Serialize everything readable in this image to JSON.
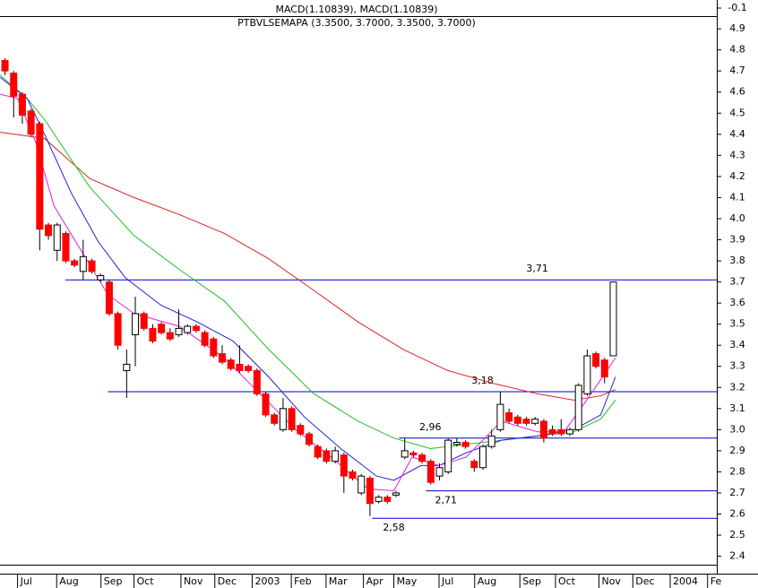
{
  "chart_data": [
    {
      "type": "candlestick",
      "title": "PTBVLSEMAPA (3.3500, 3.7000, 3.3500, 3.7000)",
      "ylim": [
        2.36,
        4.96
      ],
      "yticks": [
        2.4,
        2.5,
        2.6,
        2.7,
        2.8,
        2.9,
        {
          "value": 3,
          "label": "3.0"
        },
        3.1,
        3.2,
        3.3,
        3.4,
        3.5,
        3.6,
        3.7,
        3.8,
        3.9,
        {
          "value": 4,
          "label": "4.0"
        },
        4.1,
        4.2,
        4.3,
        4.4,
        4.5,
        4.6,
        4.7,
        4.8,
        4.9
      ],
      "xlim": [
        -0.52,
        81.96
      ],
      "xticks": [
        {
          "value": 1.5,
          "label": "Jul"
        },
        {
          "value": 6.0,
          "label": "Aug"
        },
        {
          "value": 11.1,
          "label": "Sep"
        },
        {
          "value": 14.9,
          "label": "Oct"
        },
        {
          "value": 20.3,
          "label": "Nov"
        },
        {
          "value": 24.2,
          "label": "Dec"
        },
        {
          "value": 28.5,
          "label": "2003"
        },
        {
          "value": 33.0,
          "label": "Feb"
        },
        {
          "value": 37.0,
          "label": "Mar"
        },
        {
          "value": 41.3,
          "label": "Apr"
        },
        {
          "value": 44.8,
          "label": "May"
        },
        {
          "value": 50.0,
          "label": "Jul"
        },
        {
          "value": 54.1,
          "label": "Aug"
        },
        {
          "value": 59.3,
          "label": "Sep"
        },
        {
          "value": 63.4,
          "label": "Oct"
        },
        {
          "value": 68.4,
          "label": "Nov"
        },
        {
          "value": 72.3,
          "label": "Dec"
        },
        {
          "value": 76.6,
          "label": "2004"
        },
        {
          "value": 80.9,
          "label": "Fe"
        }
      ],
      "up_color": "#ffffff",
      "down_color": "#ff0000",
      "open": [
        4.75,
        4.69,
        4.59,
        4.51,
        4.45,
        3.97,
        3.85,
        3.93,
        3.8,
        3.75,
        3.8,
        3.71,
        3.7,
        3.55,
        3.28,
        3.45,
        3.55,
        3.48,
        3.5,
        3.46,
        3.45,
        3.46,
        3.49,
        3.46,
        3.43,
        3.36,
        3.33,
        3.31,
        3.3,
        3.28,
        3.17,
        3.07,
        3.0,
        3.1,
        3.02,
        2.98,
        2.92,
        2.9,
        2.85,
        2.88,
        2.8,
        2.7,
        2.77,
        2.66,
        2.68,
        2.69,
        2.87,
        2.89,
        2.88,
        2.85,
        2.78,
        2.8,
        2.93,
        2.94,
        2.85,
        2.82,
        2.92,
        3.0,
        3.08,
        3.06,
        3.05,
        3.03,
        3.04,
        3.0,
        3.0,
        2.98,
        3.0,
        3.17,
        3.36,
        3.33,
        3.35
      ],
      "high": [
        4.76,
        4.7,
        4.6,
        4.52,
        4.46,
        3.98,
        3.98,
        3.94,
        3.81,
        3.9,
        3.81,
        3.74,
        3.71,
        3.56,
        3.38,
        3.63,
        3.56,
        3.5,
        3.51,
        3.48,
        3.57,
        3.5,
        3.5,
        3.47,
        3.44,
        3.4,
        3.34,
        3.4,
        3.31,
        3.29,
        3.18,
        3.08,
        3.15,
        3.11,
        3.03,
        2.99,
        2.93,
        2.91,
        2.92,
        2.89,
        2.81,
        2.79,
        2.78,
        2.69,
        2.69,
        2.71,
        2.96,
        2.9,
        2.89,
        2.86,
        2.84,
        2.96,
        2.96,
        2.95,
        2.86,
        2.93,
        3.0,
        3.18,
        3.1,
        3.07,
        3.06,
        3.06,
        3.05,
        3.02,
        3.05,
        3.01,
        3.22,
        3.38,
        3.37,
        3.34,
        3.7
      ],
      "low": [
        4.68,
        4.48,
        4.45,
        4.39,
        3.85,
        3.9,
        3.8,
        3.79,
        3.77,
        3.71,
        3.74,
        3.7,
        3.54,
        3.38,
        3.15,
        3.3,
        3.47,
        3.41,
        3.45,
        3.42,
        3.44,
        3.45,
        3.46,
        3.39,
        3.34,
        3.31,
        3.28,
        3.27,
        3.27,
        3.16,
        3.06,
        3.02,
        2.99,
        2.99,
        2.97,
        2.92,
        2.86,
        2.84,
        2.84,
        2.7,
        2.76,
        2.69,
        2.59,
        2.65,
        2.65,
        2.68,
        2.86,
        2.87,
        2.84,
        2.74,
        2.76,
        2.79,
        2.92,
        2.91,
        2.8,
        2.81,
        2.91,
        2.99,
        3.03,
        3.02,
        3.02,
        3.02,
        2.94,
        2.97,
        2.97,
        2.97,
        2.99,
        3.16,
        3.29,
        3.22,
        3.35
      ],
      "close": [
        4.7,
        4.58,
        4.49,
        4.4,
        3.95,
        3.92,
        3.97,
        3.8,
        3.78,
        3.82,
        3.75,
        3.73,
        3.55,
        3.4,
        3.31,
        3.55,
        3.48,
        3.42,
        3.46,
        3.43,
        3.48,
        3.49,
        3.47,
        3.4,
        3.35,
        3.32,
        3.29,
        3.28,
        3.28,
        3.17,
        3.07,
        3.03,
        3.1,
        3.0,
        2.98,
        2.93,
        2.87,
        2.85,
        2.9,
        2.78,
        2.77,
        2.78,
        2.65,
        2.68,
        2.66,
        2.7,
        2.9,
        2.88,
        2.85,
        2.75,
        2.82,
        2.95,
        2.94,
        2.92,
        2.82,
        2.92,
        2.97,
        3.12,
        3.04,
        3.03,
        3.03,
        3.05,
        2.96,
        2.98,
        2.98,
        3.0,
        3.21,
        3.35,
        3.3,
        3.25,
        3.7
      ],
      "series": [
        {
          "color": "#e02020",
          "x": [
            -0.5,
            4.6,
            9.8,
            14.9,
            20.1,
            25.3,
            30.4,
            35.6,
            40.7,
            45.9,
            51.0,
            56.2,
            61.3,
            65.5,
            68.6,
            70.3
          ],
          "values": [
            4.41,
            4.38,
            4.19,
            4.1,
            4.02,
            3.93,
            3.81,
            3.66,
            3.51,
            3.38,
            3.28,
            3.22,
            3.17,
            3.14,
            3.16,
            3.19
          ]
        },
        {
          "color": "#20c020",
          "x": [
            -0.5,
            2.6,
            4.6,
            6.7,
            9.8,
            14.9,
            20.1,
            25.3,
            30.4,
            35.6,
            40.7,
            44.8,
            49.0,
            53.1,
            57.2,
            61.3,
            65.5,
            68.6,
            70.3
          ],
          "values": [
            4.68,
            4.57,
            4.47,
            4.34,
            4.15,
            3.92,
            3.76,
            3.61,
            3.38,
            3.17,
            3.04,
            2.96,
            2.91,
            2.93,
            2.95,
            2.97,
            2.99,
            3.05,
            3.14
          ]
        },
        {
          "color": "#2020d0",
          "x": [
            -0.5,
            2.6,
            4.6,
            7.7,
            10.8,
            13.9,
            18.0,
            22.2,
            26.3,
            30.4,
            34.5,
            38.7,
            42.8,
            44.8,
            47.9,
            50.0,
            53.1,
            57.2,
            61.3,
            65.5,
            68.6,
            70.3
          ],
          "values": [
            4.67,
            4.57,
            4.4,
            4.12,
            3.89,
            3.72,
            3.59,
            3.51,
            3.42,
            3.25,
            3.06,
            2.91,
            2.78,
            2.76,
            2.83,
            2.83,
            2.89,
            2.95,
            2.97,
            3.0,
            3.07,
            3.25
          ]
        },
        {
          "color": "#e020e0",
          "x": [
            -0.5,
            1.5,
            3.6,
            5.7,
            8.8,
            11.9,
            14.9,
            20.1,
            25.3,
            29.4,
            33.5,
            37.6,
            41.8,
            44.8,
            46.9,
            50.0,
            53.1,
            57.2,
            61.3,
            64.4,
            67.5,
            70.3
          ],
          "values": [
            4.59,
            4.57,
            4.36,
            4.06,
            3.85,
            3.64,
            3.55,
            3.49,
            3.34,
            3.17,
            3.0,
            2.87,
            2.72,
            2.71,
            2.87,
            2.83,
            2.87,
            3.04,
            2.99,
            2.99,
            3.17,
            3.34
          ]
        }
      ],
      "levels": [
        {
          "value": 3.71,
          "label": "3,71",
          "from": 7.0,
          "x": 61.3
        },
        {
          "value": 3.18,
          "label": "3,18",
          "from": 11.9,
          "x": 55.0
        },
        {
          "value": 2.96,
          "label": "2,96",
          "from": 45.4,
          "x": 49.0
        },
        {
          "value": 2.71,
          "label": "2,71",
          "from": 48.5,
          "x": 50.8
        },
        {
          "value": 2.58,
          "label": "2,58",
          "from": 42.3,
          "x": 44.8
        }
      ],
      "level_color": "#0000cc"
    },
    {
      "type": "line",
      "title": "MACD(1.10839), MACD(1.10839)",
      "ylim": [
        -0.15,
        -0.05
      ],
      "yticks": [
        -0.1
      ]
    }
  ]
}
